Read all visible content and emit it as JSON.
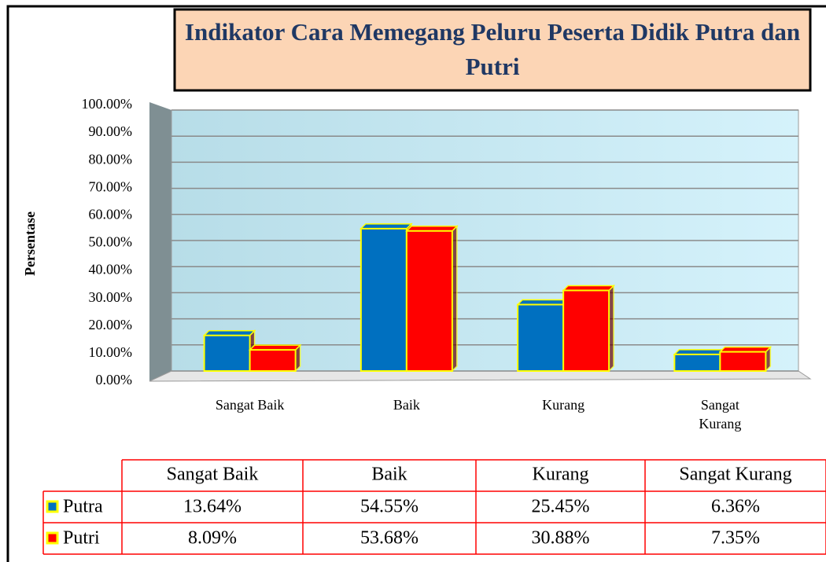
{
  "chart_data": {
    "type": "bar",
    "title": "Indikator Cara Memegang Peluru Peserta Didik Putra dan Putri",
    "y_label": "Persentase",
    "categories": [
      "Sangat Baik",
      "Baik",
      "Kurang",
      "Sangat Kurang"
    ],
    "series": [
      {
        "name": "Putra",
        "color": "#0070c0",
        "values": [
          13.64,
          54.55,
          25.45,
          6.36
        ],
        "value_labels": [
          "13.64%",
          "54.55%",
          "25.45%",
          "6.36%"
        ]
      },
      {
        "name": "Putri",
        "color": "#ff0000",
        "values": [
          8.09,
          53.68,
          30.88,
          7.35
        ],
        "value_labels": [
          "8.09%",
          "53.68%",
          "30.88%",
          "7.35%"
        ]
      }
    ],
    "ylim": [
      0,
      100
    ],
    "yticks": [
      {
        "value": 0,
        "label": "0.00%"
      },
      {
        "value": 10,
        "label": "10.00%"
      },
      {
        "value": 20,
        "label": "20.00%"
      },
      {
        "value": 30,
        "label": "30.00%"
      },
      {
        "value": 40,
        "label": "40.00%"
      },
      {
        "value": 50,
        "label": "50.00%"
      },
      {
        "value": 60,
        "label": "60.00%"
      },
      {
        "value": 70,
        "label": "70.00%"
      },
      {
        "value": 80,
        "label": "80.00%"
      },
      {
        "value": 90,
        "label": "90.00%"
      },
      {
        "value": 100,
        "label": "100.00%"
      }
    ],
    "grid": true
  }
}
